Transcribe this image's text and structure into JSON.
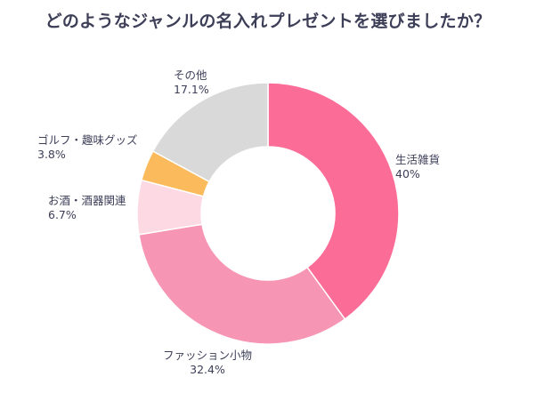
{
  "chart_data": {
    "type": "pie",
    "title": "どのようなジャンルの名入れプレゼントを選びましたか？",
    "categories": [
      "生活雑貨",
      "ファッション小物",
      "お酒・酒器関連",
      "ゴルフ・趣味グッズ",
      "その他"
    ],
    "values": [
      40,
      32.4,
      6.7,
      3.8,
      17.1
    ],
    "value_labels": [
      "40%",
      "32.4%",
      "6.7%",
      "3.8%",
      "17.1%"
    ],
    "colors": [
      "#fb6c97",
      "#f795b4",
      "#fcd9e3",
      "#fbbb5c",
      "#d9d9d9"
    ],
    "donut": true,
    "legend": "none"
  }
}
